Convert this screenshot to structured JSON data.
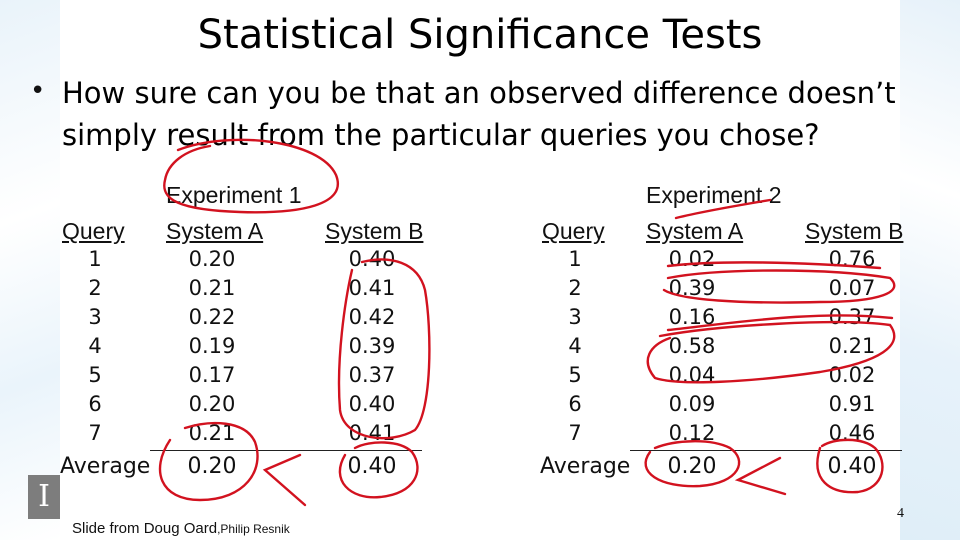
{
  "title": "Statistical Significance Tests",
  "bullet": "How sure can you be that an observed difference doesn’t simply result from the particular queries you chose?",
  "experiments": [
    {
      "name": "Experiment 1",
      "headers": [
        "Query",
        "System A",
        "System B"
      ],
      "rows": [
        [
          "1",
          "0.20",
          "0.40"
        ],
        [
          "2",
          "0.21",
          "0.41"
        ],
        [
          "3",
          "0.22",
          "0.42"
        ],
        [
          "4",
          "0.19",
          "0.39"
        ],
        [
          "5",
          "0.17",
          "0.37"
        ],
        [
          "6",
          "0.20",
          "0.40"
        ],
        [
          "7",
          "0.21",
          "0.41"
        ]
      ],
      "average_label": "Average",
      "average": [
        "0.20",
        "0.40"
      ]
    },
    {
      "name": "Experiment 2",
      "headers": [
        "Query",
        "System A",
        "System B"
      ],
      "rows": [
        [
          "1",
          "0.02",
          "0.76"
        ],
        [
          "2",
          "0.39",
          "0.07"
        ],
        [
          "3",
          "0.16",
          "0.37"
        ],
        [
          "4",
          "0.58",
          "0.21"
        ],
        [
          "5",
          "0.04",
          "0.02"
        ],
        [
          "6",
          "0.09",
          "0.91"
        ],
        [
          "7",
          "0.12",
          "0.46"
        ]
      ],
      "average_label": "Average",
      "average": [
        "0.20",
        "0.40"
      ]
    }
  ],
  "credit": {
    "main": "Slide from Doug Oard",
    "secondary": ",Philip Resnik"
  },
  "page_number": "4",
  "ink_color": "#d2121f"
}
